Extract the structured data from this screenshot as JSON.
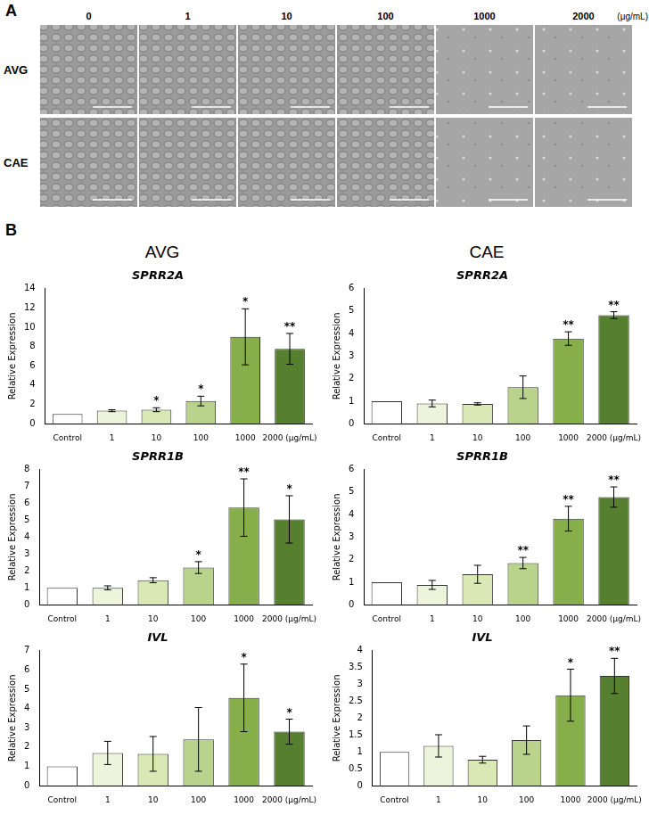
{
  "panel_labels": [
    "A",
    "B"
  ],
  "microscopy": {
    "concentrations": [
      "0",
      "1",
      "10",
      "100",
      "1000",
      "2000"
    ],
    "unit": "(μg/mL)",
    "rows": [
      "AVG",
      "CAE"
    ]
  },
  "columns": [
    "AVG",
    "CAE"
  ],
  "chart_data": [
    {
      "type": "bar",
      "title": "SPRR2A",
      "y_label": "Relative Expression",
      "categories": [
        "Control",
        "1",
        "10",
        "100",
        "1000",
        "2000 (μg/mL)"
      ],
      "values": [
        1,
        1.35,
        1.45,
        2.35,
        9.0,
        7.75
      ],
      "errors": [
        0,
        0.1,
        0.2,
        0.5,
        2.9,
        1.6
      ],
      "significance": [
        null,
        null,
        "*",
        "*",
        "*",
        "**"
      ],
      "colors": [
        "#ffffff",
        "#eef4dc",
        "#d9e8b4",
        "#b9d38c",
        "#86ae4a",
        "#56802f"
      ],
      "ylim": [
        0,
        14
      ],
      "yticks": [
        0,
        2,
        4,
        6,
        8,
        10,
        12,
        14
      ],
      "grid": false
    },
    {
      "type": "bar",
      "title": "SPRR2A",
      "y_label": "Relative Expression",
      "categories": [
        "Control",
        "1",
        "10",
        "100",
        "1000",
        "2000 (μg/mL)"
      ],
      "values": [
        1,
        0.9,
        0.88,
        1.62,
        3.78,
        4.82
      ],
      "errors": [
        0,
        0.15,
        0.05,
        0.5,
        0.3,
        0.15
      ],
      "significance": [
        null,
        null,
        null,
        null,
        "**",
        "**"
      ],
      "colors": [
        "#ffffff",
        "#eef4dc",
        "#d9e8b4",
        "#b9d38c",
        "#86ae4a",
        "#56802f"
      ],
      "ylim": [
        0,
        6
      ],
      "yticks": [
        0,
        1,
        2,
        3,
        4,
        5,
        6
      ],
      "grid": false
    },
    {
      "type": "bar",
      "title": "SPRR1B",
      "y_label": "Relative Expression",
      "categories": [
        "Control",
        "1",
        "10",
        "100",
        "1000",
        "2000 (μg/mL)"
      ],
      "values": [
        1,
        1.0,
        1.45,
        2.2,
        5.75,
        5.05
      ],
      "errors": [
        0,
        0.12,
        0.15,
        0.35,
        1.7,
        1.4
      ],
      "significance": [
        null,
        null,
        null,
        "*",
        "**",
        "*"
      ],
      "colors": [
        "#ffffff",
        "#eef4dc",
        "#d9e8b4",
        "#b9d38c",
        "#86ae4a",
        "#56802f"
      ],
      "ylim": [
        0,
        8
      ],
      "yticks": [
        0,
        1,
        2,
        3,
        4,
        5,
        6,
        7,
        8
      ],
      "grid": false
    },
    {
      "type": "bar",
      "title": "SPRR1B",
      "y_label": "Relative Expression",
      "categories": [
        "Control",
        "1",
        "10",
        "100",
        "1000",
        "2000 (μg/mL)"
      ],
      "values": [
        1,
        0.88,
        1.35,
        1.85,
        3.82,
        4.78
      ],
      "errors": [
        0,
        0.2,
        0.4,
        0.25,
        0.55,
        0.45
      ],
      "significance": [
        null,
        null,
        null,
        "**",
        "**",
        "**"
      ],
      "colors": [
        "#ffffff",
        "#eef4dc",
        "#d9e8b4",
        "#b9d38c",
        "#86ae4a",
        "#56802f"
      ],
      "ylim": [
        0,
        6
      ],
      "yticks": [
        0,
        1,
        2,
        3,
        4,
        5,
        6
      ],
      "grid": false
    },
    {
      "type": "bar",
      "title": "IVL",
      "y_label": "Relative Expression",
      "categories": [
        "Control",
        "1",
        "10",
        "100",
        "1000",
        "2000 (μg/mL)"
      ],
      "values": [
        1,
        1.7,
        1.65,
        2.4,
        4.55,
        2.8
      ],
      "errors": [
        0,
        0.6,
        0.9,
        1.65,
        1.75,
        0.65
      ],
      "significance": [
        null,
        null,
        null,
        null,
        "*",
        "*"
      ],
      "colors": [
        "#ffffff",
        "#eef4dc",
        "#d9e8b4",
        "#b9d38c",
        "#86ae4a",
        "#56802f"
      ],
      "ylim": [
        0,
        7
      ],
      "yticks": [
        0,
        1,
        2,
        3,
        4,
        5,
        6,
        7
      ],
      "grid": false
    },
    {
      "type": "bar",
      "title": "IVL",
      "y_label": "Relative Expression",
      "categories": [
        "Control",
        "1",
        "10",
        "100",
        "1000",
        "2000 (μg/mL)"
      ],
      "values": [
        1,
        1.18,
        0.77,
        1.35,
        2.68,
        3.25
      ],
      "errors": [
        0,
        0.33,
        0.1,
        0.42,
        0.77,
        0.52
      ],
      "significance": [
        null,
        null,
        null,
        null,
        "*",
        "**"
      ],
      "colors": [
        "#ffffff",
        "#eef4dc",
        "#d9e8b4",
        "#b9d38c",
        "#86ae4a",
        "#56802f"
      ],
      "ylim": [
        0,
        4
      ],
      "yticks": [
        0,
        0.5,
        1,
        1.5,
        2,
        2.5,
        3,
        3.5,
        4
      ],
      "grid": false
    }
  ]
}
